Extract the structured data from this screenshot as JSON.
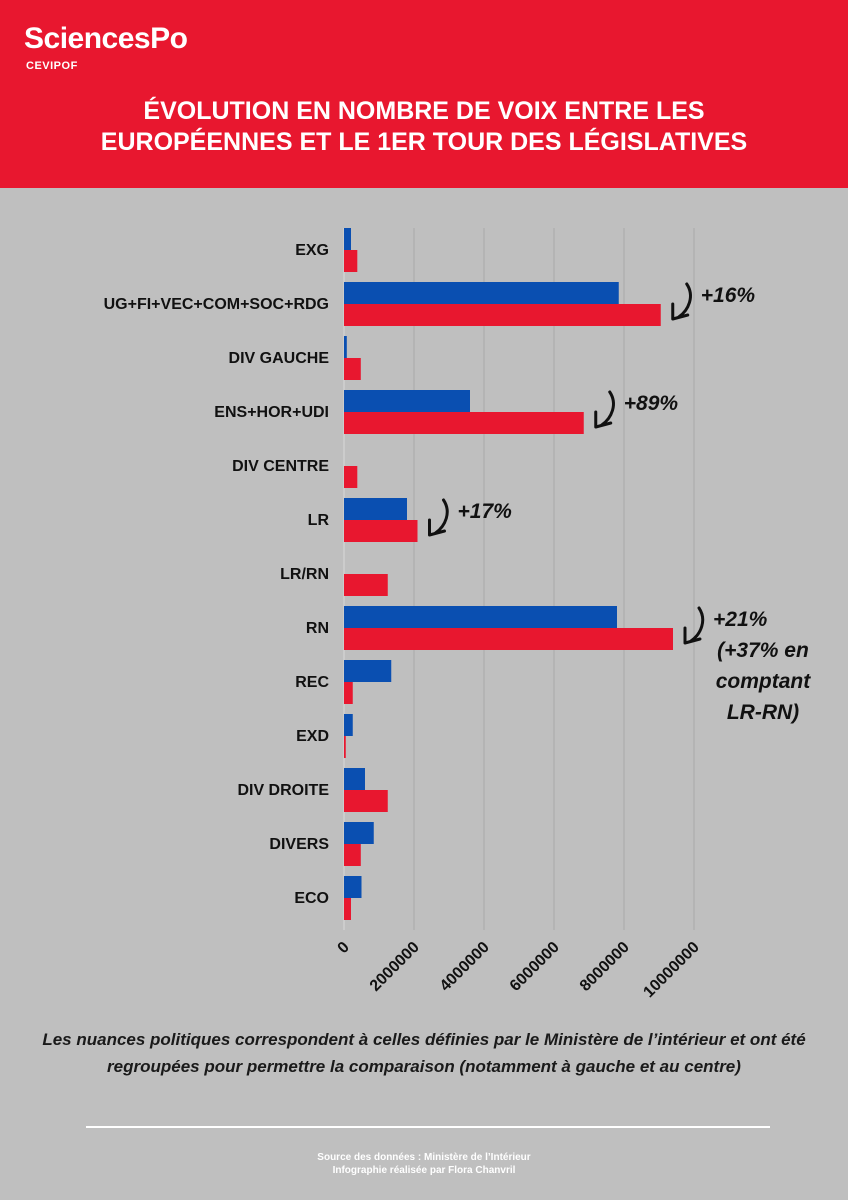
{
  "header": {
    "logo": "SciencesPo",
    "logo_sub": "CEVIPOF",
    "title_line1": "ÉVOLUTION EN NOMBRE DE VOIX ENTRE LES",
    "title_line2": "EUROPÉENNES ET LE 1ER TOUR DES LÉGISLATIVES"
  },
  "colors": {
    "header_bg": "#e8172f",
    "page_bg": "#bfbfbf",
    "series_europeennes": "#0a4fb1",
    "series_legislatives": "#e8172f"
  },
  "chart_data": {
    "type": "bar",
    "orientation": "horizontal",
    "categories": [
      "EXG",
      "UG+FI+VEC+COM+SOC+RDG",
      "DIV GAUCHE",
      "ENS+HOR+UDI",
      "DIV CENTRE",
      "LR",
      "LR/RN",
      "RN",
      "REC",
      "EXD",
      "DIV DROITE",
      "DIVERS",
      "ECO"
    ],
    "series": [
      {
        "values": [
          200000,
          7850000,
          80000,
          3600000,
          0,
          1800000,
          0,
          7800000,
          1350000,
          250000,
          600000,
          850000,
          500000
        ]
      },
      {
        "values": [
          380000,
          9050000,
          480000,
          6850000,
          380000,
          2100000,
          1250000,
          9400000,
          250000,
          50000,
          1250000,
          480000,
          200000
        ]
      }
    ],
    "xlim": [
      0,
      10000000
    ],
    "xticks": [
      "0",
      "2000000",
      "4000000",
      "6000000",
      "8000000",
      "10000000"
    ],
    "grid": true,
    "annotations": [
      {
        "category": "UG+FI+VEC+COM+SOC+RDG",
        "lines": [
          "+16%"
        ]
      },
      {
        "category": "ENS+HOR+UDI",
        "lines": [
          "+89%"
        ]
      },
      {
        "category": "LR",
        "lines": [
          "+17%"
        ]
      },
      {
        "category": "RN",
        "lines": [
          "+21%",
          "(+37% en",
          "comptant",
          "LR-RN)"
        ]
      }
    ]
  },
  "footer": {
    "note": "Les nuances politiques correspondent à celles définies par le Ministère de l’intérieur et ont été regroupées pour permettre la comparaison (notamment à gauche et au centre)",
    "source_line1": "Source des données : Ministère de l’Intérieur",
    "source_line2": "Infographie réalisée par Flora Chanvril"
  }
}
